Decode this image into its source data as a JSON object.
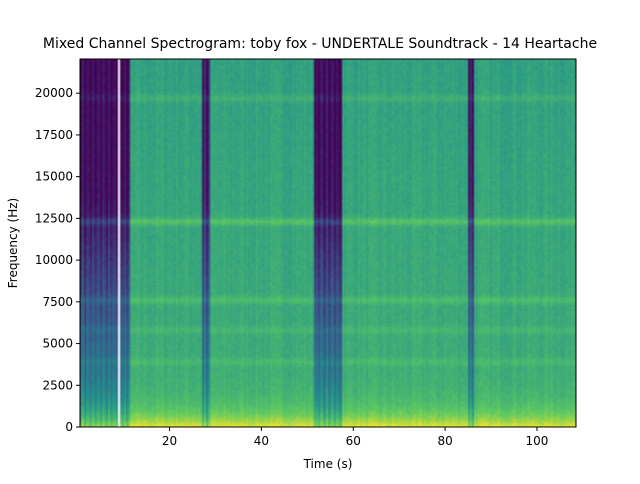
{
  "chart_data": {
    "type": "heatmap",
    "title": "Mixed Channel Spectrogram: toby fox - UNDERTALE Soundtrack - 14 Heartache",
    "xlabel": "Time (s)",
    "ylabel": "Frequency (Hz)",
    "xlim": [
      0.5,
      108.5
    ],
    "ylim": [
      0,
      22050
    ],
    "xticks": [
      20,
      40,
      60,
      80,
      100
    ],
    "yticks": [
      0,
      2500,
      5000,
      7500,
      10000,
      12500,
      15000,
      17500,
      20000
    ],
    "colormap": "viridis",
    "gap_time": 8.8,
    "quiet_sections": [
      {
        "start": 0.5,
        "end": 11.5,
        "depth": 0.55
      },
      {
        "start": 27.2,
        "end": 28.8,
        "depth": 0.5
      },
      {
        "start": 51.5,
        "end": 57.5,
        "depth": 0.55
      },
      {
        "start": 84.8,
        "end": 86.2,
        "depth": 0.5
      }
    ],
    "frequency_bands": [
      {
        "freq": 12300,
        "strength": 0.12
      },
      {
        "freq": 7600,
        "strength": 0.08
      },
      {
        "freq": 19700,
        "strength": 0.06
      },
      {
        "freq": 5800,
        "strength": 0.05
      },
      {
        "freq": 3900,
        "strength": 0.05
      }
    ]
  }
}
